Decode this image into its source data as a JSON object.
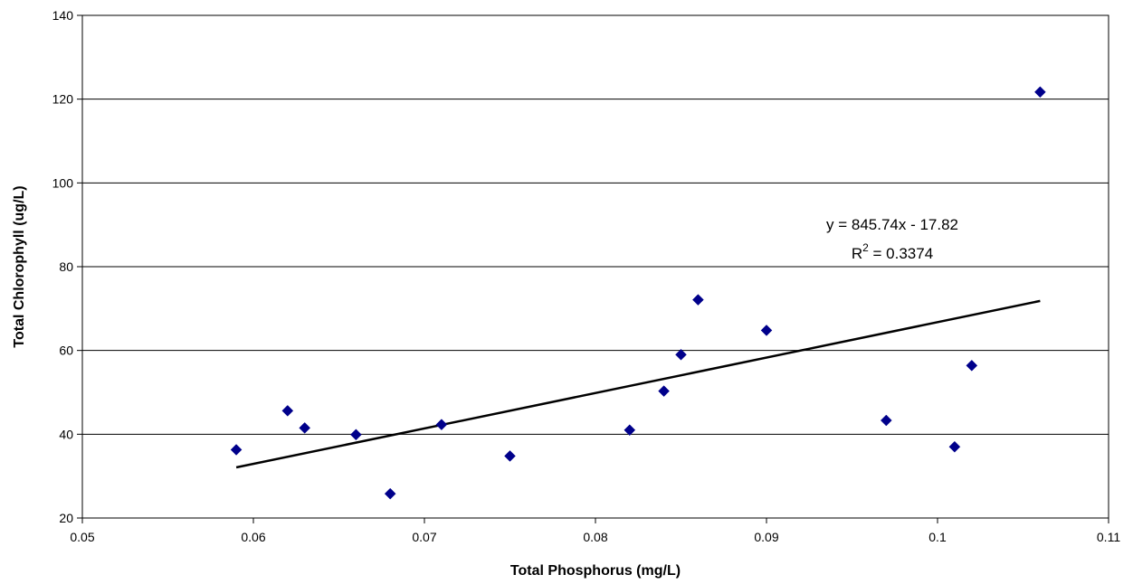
{
  "chart_data": {
    "type": "scatter",
    "title": "",
    "xlabel": "Total Phosphorus (mg/L)",
    "ylabel": "Total Chlorophyll (ug/L)",
    "xlim": [
      0.05,
      0.11
    ],
    "ylim": [
      20,
      140
    ],
    "xticks": [
      0.05,
      0.06,
      0.07,
      0.08,
      0.09,
      0.1,
      0.11
    ],
    "xtick_labels": [
      "0.05",
      "0.06",
      "0.07",
      "0.08",
      "0.09",
      "0.1",
      "0.11"
    ],
    "yticks": [
      20,
      40,
      60,
      80,
      100,
      120,
      140
    ],
    "ytick_labels": [
      "20",
      "40",
      "60",
      "80",
      "100",
      "120",
      "140"
    ],
    "grid": "horizontal",
    "legend": "none",
    "marker": "diamond",
    "marker_color": "#00008B",
    "series": [
      {
        "x": [
          0.059,
          0.062,
          0.063,
          0.066,
          0.068,
          0.071,
          0.075,
          0.082,
          0.084,
          0.085,
          0.086,
          0.09,
          0.097,
          0.101,
          0.102,
          0.106
        ],
        "y": [
          36.3,
          45.6,
          41.5,
          39.9,
          25.8,
          42.3,
          34.8,
          41.0,
          50.3,
          59.0,
          72.1,
          64.8,
          43.3,
          37.0,
          56.4,
          121.7
        ]
      }
    ],
    "trendline": {
      "type": "linear",
      "slope": 845.74,
      "intercept": -17.82,
      "x_range": [
        0.059,
        0.106
      ],
      "color": "#000000",
      "equation_label": "y = 845.74x - 17.82",
      "r2_prefix": "R",
      "r2_exponent": "2",
      "r2_value": " = 0.3374"
    }
  }
}
